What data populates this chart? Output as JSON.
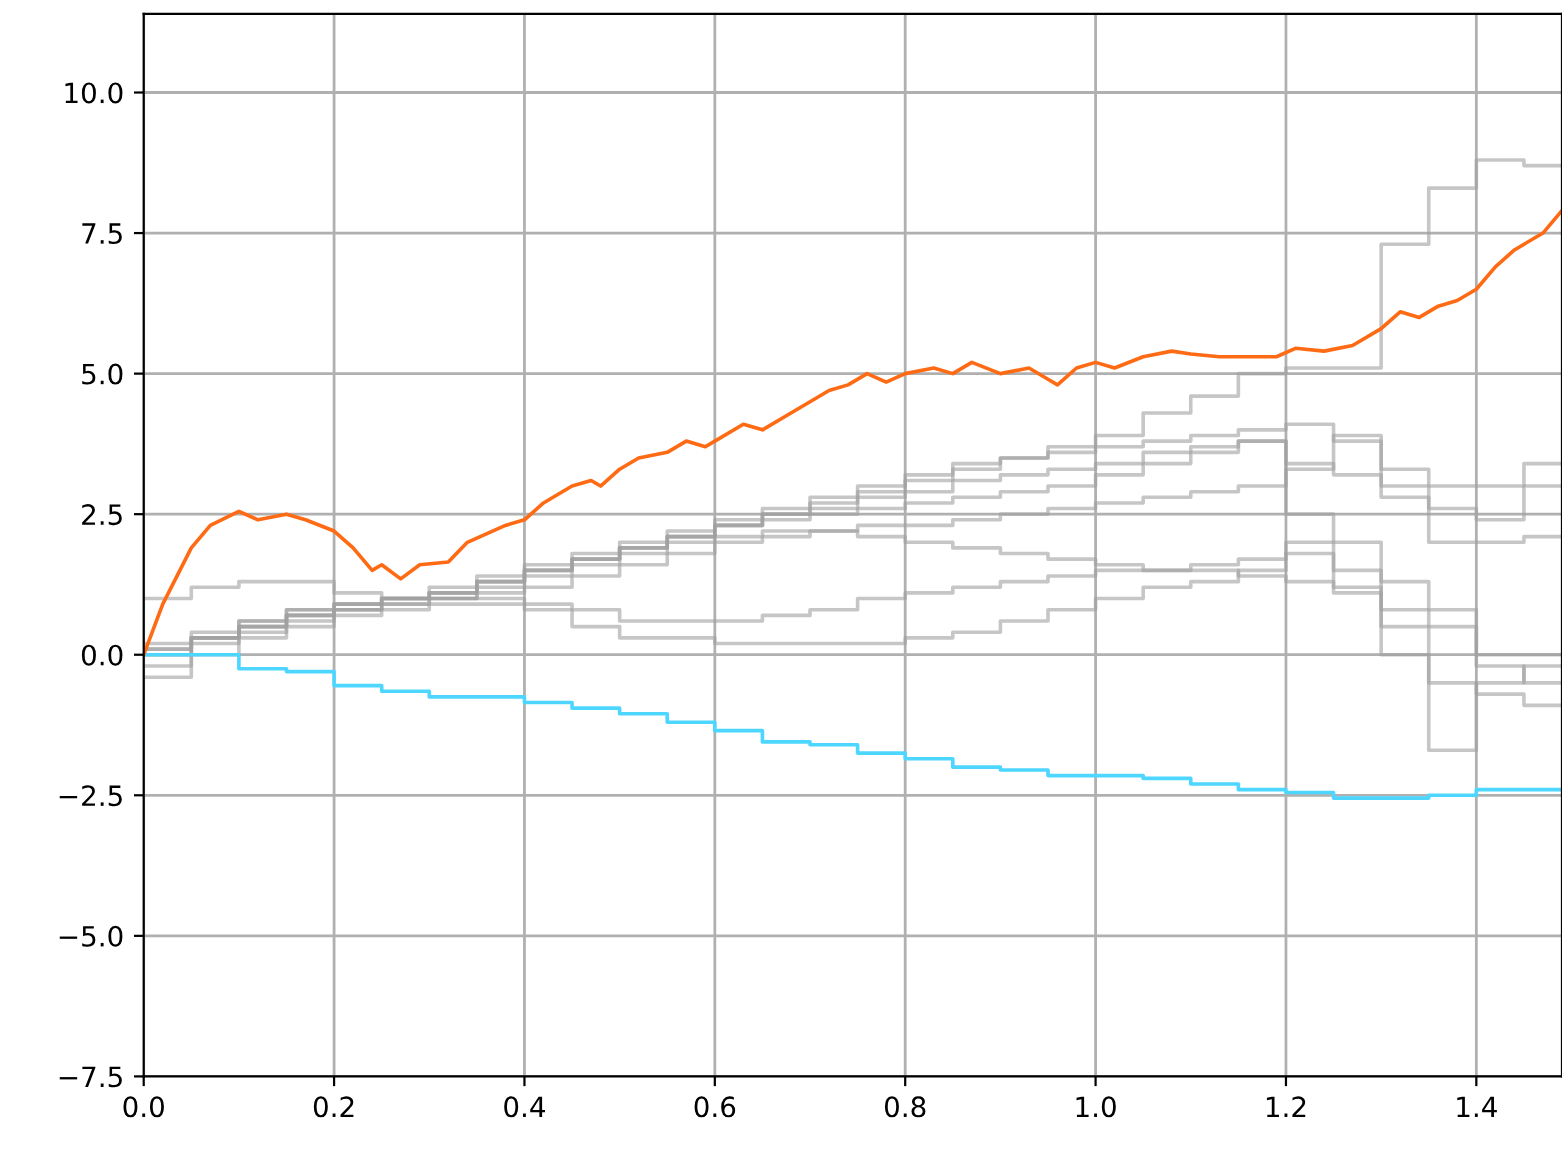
{
  "chart_data": {
    "type": "line",
    "grid": true,
    "xlim": [
      0,
      1.49
    ],
    "ylim": [
      -7.5,
      11.4
    ],
    "xticks": [
      {
        "value": 0,
        "label": "0.0"
      },
      {
        "value": 0.2,
        "label": "0.2"
      },
      {
        "value": 0.4,
        "label": "0.4"
      },
      {
        "value": 0.6,
        "label": "0.6"
      },
      {
        "value": 0.8,
        "label": "0.8"
      },
      {
        "value": 1.0,
        "label": "1.0"
      },
      {
        "value": 1.2,
        "label": "1.2"
      },
      {
        "value": 1.4,
        "label": "1.4"
      }
    ],
    "yticks": [
      {
        "value": -7.5,
        "label": "−7.5"
      },
      {
        "value": -5,
        "label": "−5.0"
      },
      {
        "value": -2.5,
        "label": "−2.5"
      },
      {
        "value": 0,
        "label": "0.0"
      },
      {
        "value": 2.5,
        "label": "2.5"
      },
      {
        "value": 5,
        "label": "5.0"
      },
      {
        "value": 7.5,
        "label": "7.5"
      },
      {
        "value": 10,
        "label": "10.0"
      }
    ],
    "x": [
      0,
      0.05,
      0.1,
      0.15,
      0.2,
      0.25,
      0.3,
      0.35,
      0.4,
      0.45,
      0.5,
      0.55,
      0.6,
      0.65,
      0.7,
      0.75,
      0.8,
      0.85,
      0.9,
      0.95,
      1.0,
      1.05,
      1.1,
      1.15,
      1.2,
      1.25,
      1.3,
      1.35,
      1.4,
      1.45,
      1.49
    ],
    "series": [
      {
        "type": "step",
        "color": "#a0a0a0",
        "values": [
          0.1,
          0.3,
          0.5,
          0.7,
          0.9,
          1.0,
          1.1,
          1.3,
          1.5,
          1.7,
          1.9,
          2.1,
          2.3,
          2.5,
          2.7,
          2.9,
          3.1,
          3.3,
          3.5,
          3.7,
          3.9,
          4.3,
          4.6,
          5.0,
          5.1,
          5.1,
          7.3,
          8.3,
          8.8,
          8.7,
          8.7
        ]
      },
      {
        "type": "step",
        "color": "#a0a0a0",
        "values": [
          0.2,
          0.4,
          0.6,
          0.8,
          0.9,
          1.0,
          1.2,
          1.4,
          1.6,
          1.8,
          2.0,
          2.2,
          2.4,
          2.6,
          2.8,
          3.0,
          3.2,
          3.4,
          3.5,
          3.6,
          3.7,
          3.8,
          3.9,
          4.0,
          4.1,
          3.8,
          3.3,
          3.0,
          3.0,
          3.4,
          3.4
        ]
      },
      {
        "type": "step",
        "color": "#a0a0a0",
        "values": [
          0.0,
          0.3,
          0.5,
          0.7,
          0.8,
          1.0,
          1.1,
          1.3,
          1.5,
          1.7,
          1.9,
          2.1,
          2.3,
          2.4,
          2.5,
          2.6,
          2.7,
          2.8,
          2.9,
          3.0,
          3.2,
          3.4,
          3.6,
          3.8,
          2.5,
          1.5,
          0.0,
          -1.7,
          -0.5,
          -0.2,
          -0.2
        ]
      },
      {
        "type": "step",
        "color": "#a0a0a0",
        "values": [
          1.0,
          1.2,
          1.3,
          1.3,
          1.1,
          1.0,
          1.0,
          1.1,
          1.2,
          1.4,
          1.6,
          1.8,
          2.0,
          2.1,
          2.2,
          2.3,
          2.3,
          2.4,
          2.5,
          2.6,
          2.7,
          2.8,
          2.9,
          3.0,
          3.3,
          3.9,
          2.8,
          2.0,
          2.0,
          2.1,
          2.1
        ]
      },
      {
        "type": "step",
        "color": "#a0a0a0",
        "values": [
          -0.2,
          0.2,
          0.4,
          0.6,
          0.8,
          0.9,
          1.0,
          1.0,
          0.9,
          0.8,
          0.6,
          0.6,
          0.6,
          0.7,
          0.8,
          1.0,
          1.1,
          1.2,
          1.3,
          1.4,
          1.5,
          1.5,
          1.6,
          1.7,
          2.0,
          2.0,
          1.3,
          0.8,
          0.0,
          0.0,
          0.0
        ]
      },
      {
        "type": "step",
        "color": "#a0a0a0",
        "values": [
          -0.4,
          0.0,
          0.3,
          0.5,
          0.7,
          0.8,
          0.9,
          0.9,
          0.8,
          0.5,
          0.3,
          0.3,
          0.2,
          0.2,
          0.2,
          0.2,
          0.3,
          0.4,
          0.6,
          0.8,
          1.0,
          1.2,
          1.3,
          1.5,
          1.8,
          1.2,
          0.8,
          0.5,
          -0.2,
          -0.5,
          -0.5
        ]
      },
      {
        "type": "step",
        "color": "#a0a0a0",
        "values": [
          0.0,
          0.3,
          0.5,
          0.7,
          0.8,
          0.9,
          1.0,
          1.2,
          1.4,
          1.6,
          1.8,
          2.0,
          2.1,
          2.2,
          2.2,
          2.1,
          2.0,
          1.9,
          1.8,
          1.7,
          1.6,
          1.5,
          1.5,
          1.4,
          1.3,
          1.1,
          0.5,
          -0.5,
          -0.7,
          -0.9,
          -0.9
        ]
      },
      {
        "type": "step",
        "color": "#a0a0a0",
        "values": [
          0.1,
          0.3,
          0.6,
          0.8,
          0.9,
          1.0,
          1.1,
          1.3,
          1.5,
          1.7,
          1.9,
          2.1,
          2.3,
          2.5,
          2.6,
          2.8,
          2.9,
          3.1,
          3.2,
          3.3,
          3.4,
          3.6,
          3.7,
          3.8,
          3.4,
          3.2,
          3.0,
          2.6,
          2.4,
          3.0,
          3.0
        ]
      },
      {
        "type": "step",
        "color": "#4dd6ff",
        "x": [
          0,
          0.1,
          0.15,
          0.2,
          0.25,
          0.3,
          0.4,
          0.45,
          0.5,
          0.55,
          0.6,
          0.65,
          0.7,
          0.75,
          0.8,
          0.85,
          0.9,
          0.95,
          1.05,
          1.1,
          1.15,
          1.2,
          1.25,
          1.35,
          1.4,
          1.49
        ],
        "values": [
          0,
          -0.25,
          -0.3,
          -0.55,
          -0.65,
          -0.75,
          -0.85,
          -0.95,
          -1.05,
          -1.2,
          -1.35,
          -1.55,
          -1.6,
          -1.75,
          -1.85,
          -2.0,
          -2.05,
          -2.15,
          -2.2,
          -2.3,
          -2.4,
          -2.45,
          -2.55,
          -2.5,
          -2.4,
          -2.4
        ]
      },
      {
        "color": "#ff6a14",
        "x": [
          0,
          0.02,
          0.05,
          0.07,
          0.1,
          0.12,
          0.15,
          0.17,
          0.2,
          0.22,
          0.24,
          0.25,
          0.27,
          0.29,
          0.32,
          0.34,
          0.36,
          0.38,
          0.4,
          0.42,
          0.45,
          0.47,
          0.48,
          0.5,
          0.52,
          0.55,
          0.57,
          0.59,
          0.6,
          0.63,
          0.65,
          0.68,
          0.7,
          0.72,
          0.74,
          0.76,
          0.78,
          0.8,
          0.83,
          0.85,
          0.87,
          0.9,
          0.93,
          0.95,
          0.96,
          0.98,
          1.0,
          1.02,
          1.05,
          1.08,
          1.1,
          1.13,
          1.16,
          1.19,
          1.21,
          1.24,
          1.27,
          1.3,
          1.32,
          1.34,
          1.36,
          1.38,
          1.4,
          1.42,
          1.44,
          1.47,
          1.49
        ],
        "values": [
          0,
          0.9,
          1.9,
          2.3,
          2.55,
          2.4,
          2.5,
          2.4,
          2.2,
          1.9,
          1.5,
          1.6,
          1.35,
          1.6,
          1.65,
          2.0,
          2.15,
          2.3,
          2.4,
          2.7,
          3.0,
          3.1,
          3.0,
          3.3,
          3.5,
          3.6,
          3.8,
          3.7,
          3.8,
          4.1,
          4.0,
          4.3,
          4.5,
          4.7,
          4.8,
          5.0,
          4.85,
          5.0,
          5.1,
          5.0,
          5.2,
          5.0,
          5.1,
          4.9,
          4.8,
          5.1,
          5.2,
          5.1,
          5.3,
          5.4,
          5.35,
          5.3,
          5.3,
          5.3,
          5.45,
          5.4,
          5.5,
          5.8,
          6.1,
          6.0,
          6.2,
          6.3,
          6.5,
          6.9,
          7.2,
          7.5,
          7.9
        ]
      }
    ]
  }
}
